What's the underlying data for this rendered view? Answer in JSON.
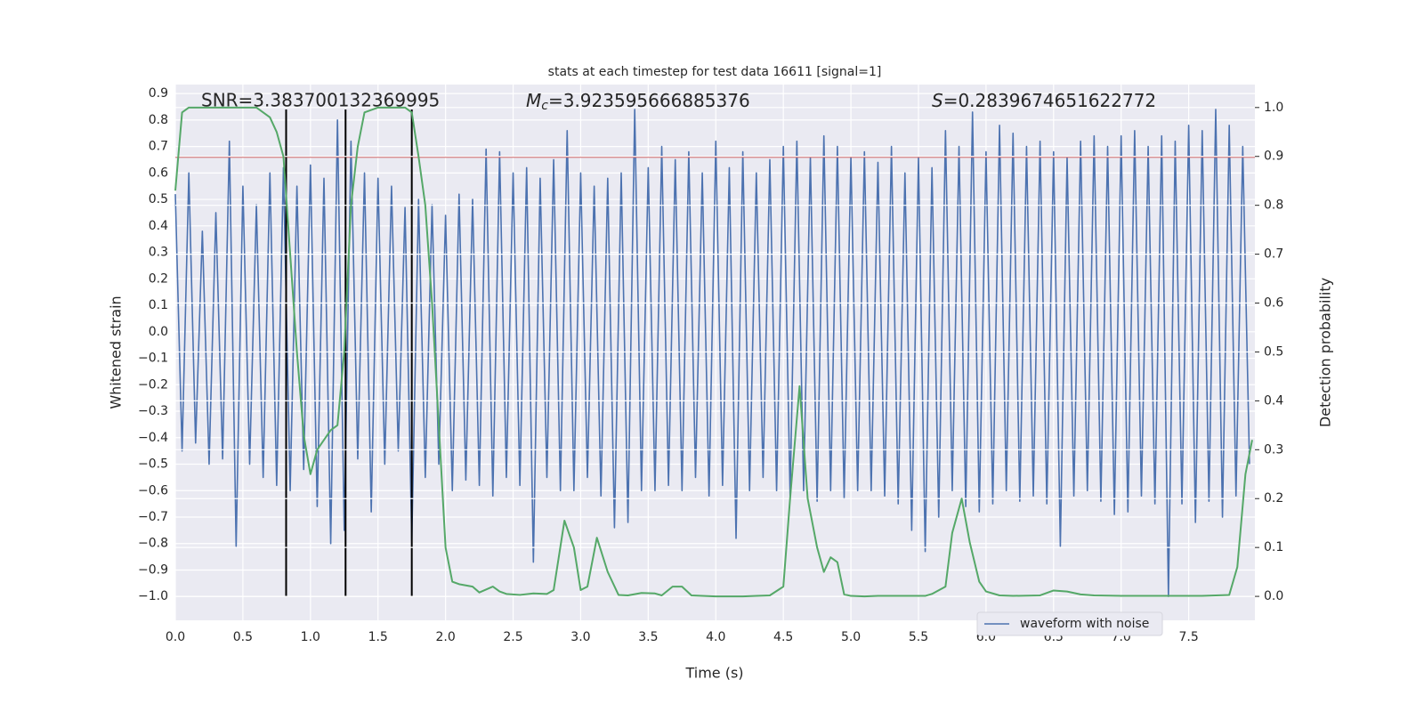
{
  "chart_data": {
    "type": "line",
    "title": "stats at each timestep for test data 16611 [signal=1]",
    "xlabel": "Time (s)",
    "ylabel": "Whitened strain",
    "y2label": "Detection probability",
    "annotations": [
      {
        "text": "SNR=3.383700132369995"
      },
      {
        "symbol": "M",
        "subscript": "c",
        "text": "=3.923595666885376"
      },
      {
        "symbol": "S",
        "text": "=0.2839674651622772"
      }
    ],
    "xlim": [
      0,
      7.99
    ],
    "ylim": [
      -1.09,
      0.934
    ],
    "y2lim": [
      -0.049,
      1.047
    ],
    "xticks": [
      {
        "value": 0,
        "label": "0.0"
      },
      0.5,
      {
        "value": 1,
        "label": "1.0"
      },
      1.5,
      {
        "value": 2,
        "label": "2.0"
      },
      2.5,
      {
        "value": 3,
        "label": "3.0"
      },
      3.5,
      {
        "value": 4,
        "label": "4.0"
      },
      4.5,
      {
        "value": 5,
        "label": "5.0"
      },
      5.5,
      {
        "value": 6,
        "label": "6.0"
      },
      6.5,
      {
        "value": 7,
        "label": "7.0"
      },
      7.5
    ],
    "yticks": [
      {
        "value": -1,
        "label": "−1.0"
      },
      {
        "value": -0.9,
        "label": "−0.9"
      },
      {
        "value": -0.8,
        "label": "−0.8"
      },
      {
        "value": -0.7,
        "label": "−0.7"
      },
      {
        "value": -0.6,
        "label": "−0.6"
      },
      {
        "value": -0.5,
        "label": "−0.5"
      },
      {
        "value": -0.4,
        "label": "−0.4"
      },
      {
        "value": -0.3,
        "label": "−0.3"
      },
      {
        "value": -0.2,
        "label": "−0.2"
      },
      {
        "value": -0.1,
        "label": "−0.1"
      },
      {
        "value": 0,
        "label": "0.0"
      },
      0.1,
      0.2,
      0.3,
      0.4,
      0.5,
      0.6,
      0.7,
      0.8,
      0.9
    ],
    "y2ticks": [
      {
        "value": 0,
        "label": "0.0"
      },
      0.1,
      0.2,
      0.3,
      0.4,
      0.5,
      0.6,
      0.7,
      0.8,
      0.9,
      {
        "value": 1,
        "label": "1.0"
      }
    ],
    "grid": true,
    "legend": "lower right",
    "hlines": [
      {
        "y": 0.66,
        "color": "#c44e52"
      }
    ],
    "vlines": {
      "x": [
        0.82,
        1.26,
        1.75
      ],
      "ymin": -1.0,
      "ymax": 0.84,
      "color": "#000000"
    },
    "series": [
      {
        "name": "waveform with noise",
        "color": "#4c72b0",
        "x": [
          0,
          0.05,
          0.1,
          0.15,
          0.2,
          0.25,
          0.3,
          0.35,
          0.4,
          0.45,
          0.5,
          0.55,
          0.6,
          0.65,
          0.7,
          0.75,
          0.8,
          0.85,
          0.9,
          0.95,
          1,
          1.05,
          1.1,
          1.15,
          1.2,
          1.25,
          1.3,
          1.35,
          1.4,
          1.45,
          1.5,
          1.55,
          1.6,
          1.65,
          1.7,
          1.75,
          1.8,
          1.85,
          1.9,
          1.95,
          2,
          2.05,
          2.1,
          2.15,
          2.2,
          2.25,
          2.3,
          2.35,
          2.4,
          2.45,
          2.5,
          2.55,
          2.6,
          2.65,
          2.7,
          2.75,
          2.8,
          2.85,
          2.9,
          2.95,
          3,
          3.05,
          3.1,
          3.15,
          3.2,
          3.25,
          3.3,
          3.35,
          3.4,
          3.45,
          3.5,
          3.55,
          3.6,
          3.65,
          3.7,
          3.75,
          3.8,
          3.85,
          3.9,
          3.95,
          4,
          4.05,
          4.1,
          4.15,
          4.2,
          4.25,
          4.3,
          4.35,
          4.4,
          4.45,
          4.5,
          4.55,
          4.6,
          4.65,
          4.7,
          4.75,
          4.8,
          4.85,
          4.9,
          4.95,
          5,
          5.05,
          5.1,
          5.15,
          5.2,
          5.25,
          5.3,
          5.35,
          5.4,
          5.45,
          5.5,
          5.55,
          5.6,
          5.65,
          5.7,
          5.75,
          5.8,
          5.85,
          5.9,
          5.95,
          6,
          6.05,
          6.1,
          6.15,
          6.2,
          6.25,
          6.3,
          6.35,
          6.4,
          6.45,
          6.5,
          6.55,
          6.6,
          6.65,
          6.7,
          6.75,
          6.8,
          6.85,
          6.9,
          6.95,
          7,
          7.05,
          7.1,
          7.15,
          7.2,
          7.25,
          7.3,
          7.35,
          7.4,
          7.45,
          7.5,
          7.55,
          7.6,
          7.65,
          7.7,
          7.75,
          7.8,
          7.85,
          7.9,
          7.95
        ],
        "values": [
          0.52,
          -0.45,
          0.6,
          -0.42,
          0.38,
          -0.5,
          0.45,
          -0.48,
          0.72,
          -0.81,
          0.55,
          -0.5,
          0.48,
          -0.55,
          0.6,
          -0.58,
          0.62,
          -0.6,
          0.55,
          -0.52,
          0.63,
          -0.66,
          0.58,
          -0.8,
          0.8,
          -0.75,
          0.72,
          -0.48,
          0.6,
          -0.68,
          0.58,
          -0.5,
          0.55,
          -0.45,
          0.47,
          -0.79,
          0.5,
          -0.55,
          0.48,
          -0.5,
          0.44,
          -0.6,
          0.52,
          -0.56,
          0.5,
          -0.58,
          0.69,
          -0.62,
          0.68,
          -0.55,
          0.6,
          -0.58,
          0.62,
          -0.87,
          0.58,
          -0.55,
          0.65,
          -0.6,
          0.76,
          -0.6,
          0.6,
          -0.55,
          0.55,
          -0.62,
          0.58,
          -0.74,
          0.6,
          -0.72,
          0.84,
          -0.6,
          0.62,
          -0.6,
          0.7,
          -0.58,
          0.65,
          -0.6,
          0.68,
          -0.55,
          0.6,
          -0.62,
          0.72,
          -0.58,
          0.62,
          -0.78,
          0.68,
          -0.6,
          0.6,
          -0.55,
          0.65,
          -0.6,
          0.7,
          -0.62,
          0.72,
          -0.6,
          0.66,
          -0.64,
          0.74,
          -0.6,
          0.7,
          -0.63,
          0.66,
          -0.6,
          0.68,
          -0.6,
          0.64,
          -0.62,
          0.7,
          -0.65,
          0.6,
          -0.75,
          0.66,
          -0.83,
          0.62,
          -0.7,
          0.76,
          -0.6,
          0.7,
          -0.66,
          0.83,
          -0.68,
          0.68,
          -0.65,
          0.78,
          -0.6,
          0.75,
          -0.64,
          0.7,
          -0.62,
          0.72,
          -0.65,
          0.68,
          -0.81,
          0.66,
          -0.62,
          0.72,
          -0.6,
          0.74,
          -0.64,
          0.7,
          -0.69,
          0.74,
          -0.68,
          0.76,
          -0.62,
          0.7,
          -0.65,
          0.74,
          -1.0,
          0.72,
          -0.65,
          0.78,
          -0.72,
          0.76,
          -0.64,
          0.84,
          -0.7,
          0.78,
          -0.62,
          0.7,
          -0.5
        ]
      },
      {
        "color": "#55a868",
        "axis": "y2",
        "x": [
          0,
          0.05,
          0.1,
          0.2,
          0.3,
          0.4,
          0.5,
          0.6,
          0.7,
          0.75,
          0.8,
          0.85,
          0.9,
          0.95,
          1,
          1.05,
          1.1,
          1.15,
          1.2,
          1.25,
          1.3,
          1.35,
          1.4,
          1.5,
          1.6,
          1.7,
          1.75,
          1.8,
          1.85,
          1.9,
          2,
          2.05,
          2.1,
          2.2,
          2.25,
          2.35,
          2.4,
          2.45,
          2.55,
          2.65,
          2.75,
          2.8,
          2.88,
          2.95,
          3,
          3.05,
          3.12,
          3.2,
          3.28,
          3.35,
          3.45,
          3.55,
          3.6,
          3.68,
          3.75,
          3.82,
          3.9,
          4,
          4.1,
          4.2,
          4.3,
          4.4,
          4.5,
          4.55,
          4.62,
          4.68,
          4.75,
          4.8,
          4.85,
          4.9,
          4.95,
          5,
          5.1,
          5.2,
          5.4,
          5.55,
          5.6,
          5.7,
          5.75,
          5.82,
          5.88,
          5.95,
          6,
          6.1,
          6.2,
          6.4,
          6.5,
          6.6,
          6.7,
          6.8,
          7,
          7.2,
          7.4,
          7.6,
          7.7,
          7.8,
          7.86,
          7.92,
          7.97
        ],
        "values": [
          0.83,
          0.99,
          1.0,
          1.0,
          1.0,
          1.0,
          1.0,
          1.0,
          0.98,
          0.95,
          0.9,
          0.7,
          0.5,
          0.33,
          0.25,
          0.3,
          0.32,
          0.34,
          0.35,
          0.5,
          0.8,
          0.92,
          0.99,
          1.0,
          1.0,
          1.0,
          0.99,
          0.9,
          0.8,
          0.6,
          0.1,
          0.03,
          0.025,
          0.02,
          0.008,
          0.02,
          0.01,
          0.005,
          0.003,
          0.006,
          0.005,
          0.013,
          0.155,
          0.1,
          0.013,
          0.02,
          0.12,
          0.05,
          0.003,
          0.002,
          0.007,
          0.006,
          0.002,
          0.02,
          0.02,
          0.002,
          0.001,
          0.0,
          0.0,
          0.0,
          0.001,
          0.002,
          0.02,
          0.2,
          0.43,
          0.2,
          0.1,
          0.05,
          0.08,
          0.07,
          0.004,
          0.001,
          0.0,
          0.001,
          0.001,
          0.001,
          0.005,
          0.02,
          0.13,
          0.2,
          0.11,
          0.03,
          0.01,
          0.002,
          0.001,
          0.002,
          0.012,
          0.01,
          0.004,
          0.002,
          0.001,
          0.001,
          0.001,
          0.001,
          0.002,
          0.003,
          0.06,
          0.25,
          0.32
        ]
      }
    ]
  }
}
